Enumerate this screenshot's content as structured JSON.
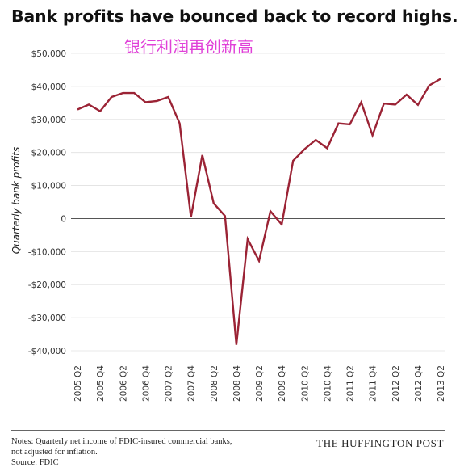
{
  "chart_data": {
    "type": "line",
    "title": "Bank profits have bounced back to record highs.",
    "subtitle": "银行利润再创新高",
    "ylabel": "Quarterly bank profits",
    "xlabel": "",
    "ylim": [
      -40000,
      50000
    ],
    "yticks": [
      50000,
      40000,
      30000,
      20000,
      10000,
      0,
      -10000,
      -20000,
      -30000,
      -40000
    ],
    "ytick_labels": [
      "$50,000",
      "$40,000",
      "$30,000",
      "$20,000",
      "$10,000",
      "0",
      "-$10,000",
      "-$20,000",
      "-$30,000",
      "-$40,000"
    ],
    "x_tick_labels": [
      "2005 Q2",
      "2005 Q4",
      "2006 Q2",
      "2006 Q4",
      "2007 Q2",
      "2007 Q4",
      "2008 Q2",
      "2008 Q4",
      "2009 Q2",
      "2009 Q4",
      "2010 Q2",
      "2010 Q4",
      "2011 Q2",
      "2011 Q4",
      "2012 Q2",
      "2012 Q4",
      "2013 Q2"
    ],
    "grid": true,
    "line_color": "#9b2335",
    "series": [
      {
        "x": [
          "2005 Q2",
          "2005 Q3",
          "2005 Q4",
          "2006 Q1",
          "2006 Q2",
          "2006 Q3",
          "2006 Q4",
          "2007 Q1",
          "2007 Q2",
          "2007 Q3",
          "2007 Q4",
          "2008 Q1",
          "2008 Q2",
          "2008 Q3",
          "2008 Q4",
          "2009 Q1",
          "2009 Q2",
          "2009 Q3",
          "2009 Q4",
          "2010 Q1",
          "2010 Q2",
          "2010 Q3",
          "2010 Q4",
          "2011 Q1",
          "2011 Q2",
          "2011 Q3",
          "2011 Q4",
          "2012 Q1",
          "2012 Q2",
          "2012 Q3",
          "2012 Q4",
          "2013 Q1",
          "2013 Q2"
        ],
        "values": [
          33000,
          34500,
          32500,
          36800,
          38000,
          38000,
          35200,
          35600,
          36800,
          28800,
          400,
          19200,
          4600,
          800,
          -38200,
          -6200,
          -12800,
          2200,
          -1800,
          17500,
          21000,
          23800,
          21300,
          28800,
          28500,
          35200,
          25200,
          34800,
          34500,
          37500,
          34400,
          40300,
          42300
        ]
      }
    ]
  },
  "notes": {
    "line1": "Notes: Quarterly net income of FDIC-insured commercial banks,",
    "line2": "not adjusted for inflation.",
    "line3": "Source: FDIC"
  },
  "brand": "THE HUFFINGTON POST"
}
